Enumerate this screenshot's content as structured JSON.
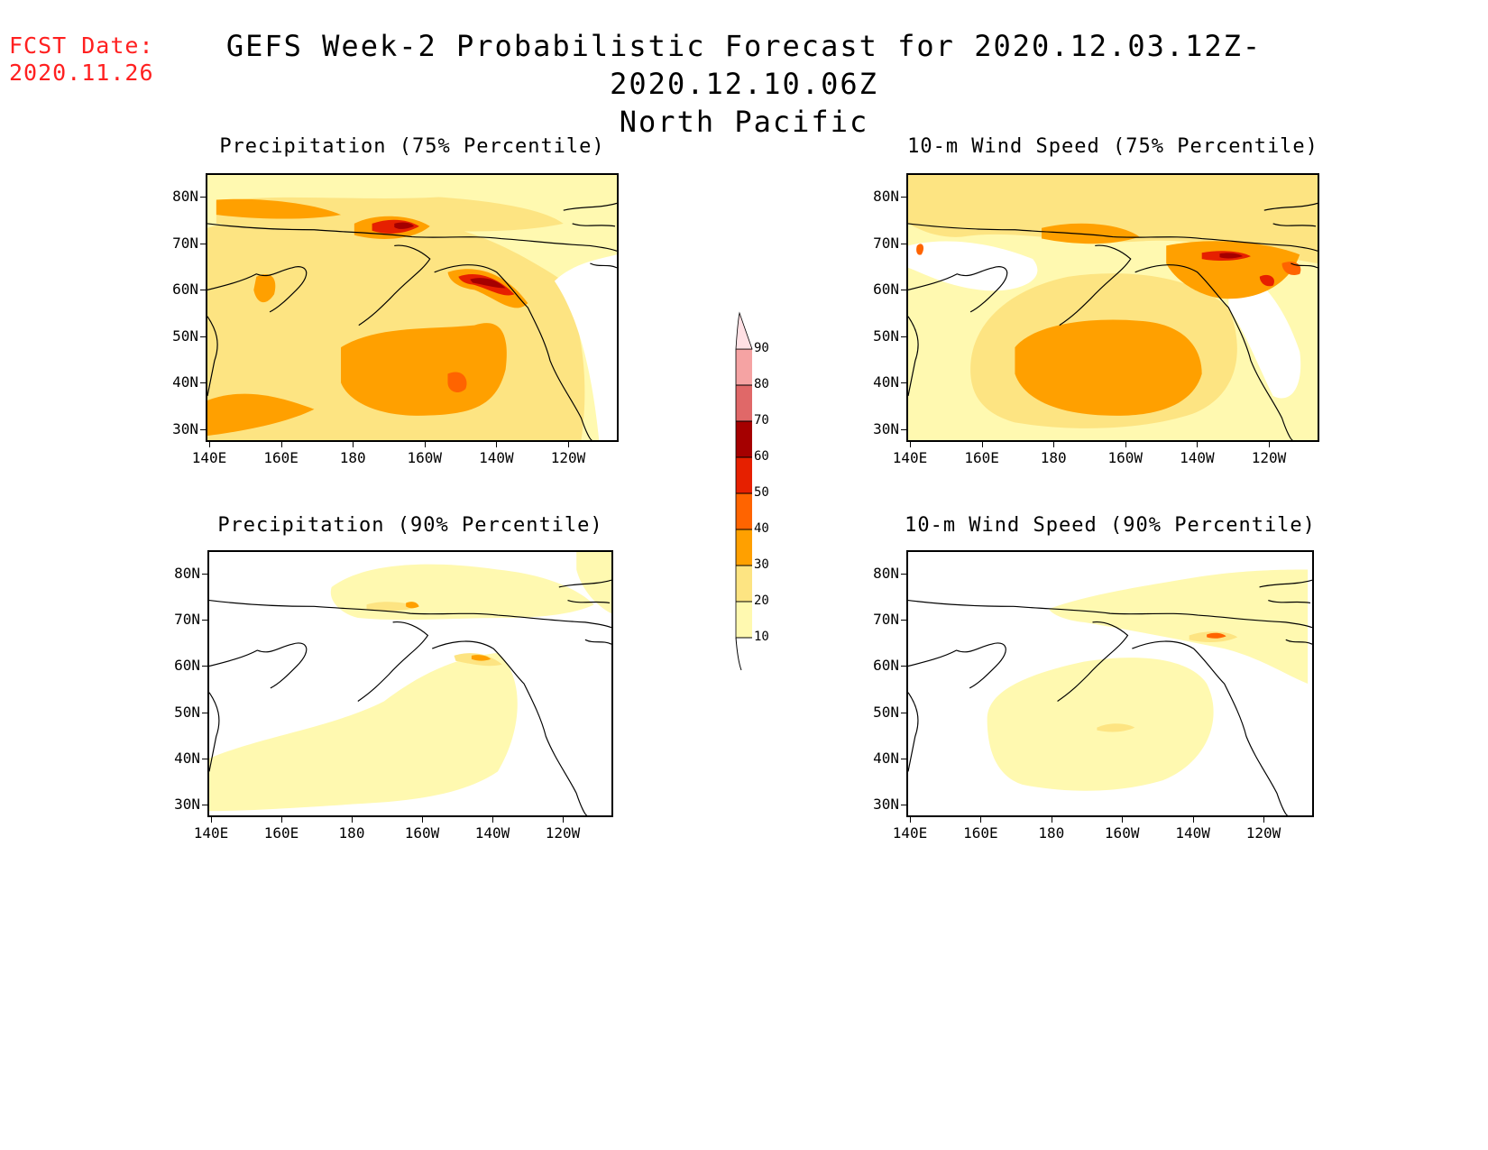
{
  "fcst_date": {
    "label": "FCST Date:",
    "value": "2020.11.26"
  },
  "title": {
    "line1": "GEFS Week-2 Probabilistic Forecast for 2020.12.03.12Z-2020.12.10.06Z",
    "line2": "North Pacific"
  },
  "panels": [
    {
      "id": "precip75",
      "title": "Precipitation (75% Percentile)"
    },
    {
      "id": "wind75",
      "title": "10-m Wind Speed (75% Percentile)"
    },
    {
      "id": "precip90",
      "title": "Precipitation (90% Percentile)"
    },
    {
      "id": "wind90",
      "title": "10-m Wind Speed (90% Percentile)"
    }
  ],
  "axes": {
    "lat_labels": [
      "80N",
      "70N",
      "60N",
      "50N",
      "40N",
      "30N"
    ],
    "lon_labels": [
      "140E",
      "160E",
      "180",
      "160W",
      "140W",
      "120W"
    ]
  },
  "colorbar": {
    "levels": [
      "10",
      "20",
      "30",
      "40",
      "50",
      "60",
      "70",
      "80",
      "90"
    ],
    "colors": [
      "#fff9b0",
      "#fde482",
      "#ffa000",
      "#ff6400",
      "#e62000",
      "#a50000",
      "#e06868",
      "#f5a3a3",
      "#ffe0e4"
    ]
  }
}
